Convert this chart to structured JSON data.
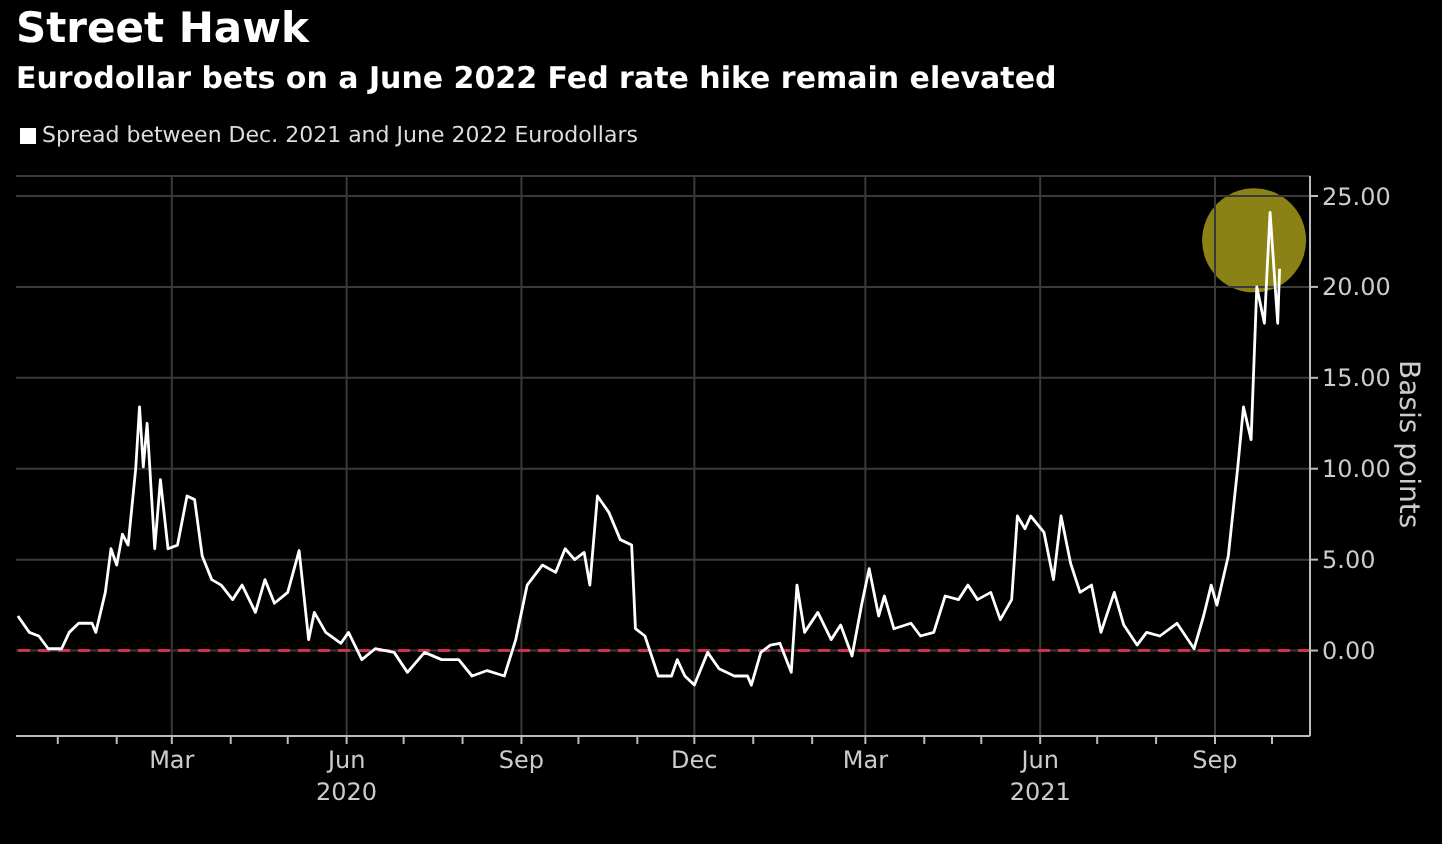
{
  "chart_data": {
    "type": "line",
    "title": "Street Hawk",
    "subtitle": "Eurodollar bets on a June 2022 Fed rate hike remain elevated",
    "ylabel": "Basis points",
    "x": [
      "2019-12-11",
      "2019-12-17",
      "2019-12-22",
      "2019-12-27",
      "2020-01-03",
      "2020-01-07",
      "2020-01-12",
      "2020-01-19",
      "2020-01-21",
      "2020-01-26",
      "2020-01-29",
      "2020-02-01",
      "2020-02-04",
      "2020-02-07",
      "2020-02-11",
      "2020-02-13",
      "2020-02-15",
      "2020-02-17",
      "2020-02-21",
      "2020-02-24",
      "2020-02-28",
      "2020-03-04",
      "2020-03-09",
      "2020-03-13",
      "2020-03-17",
      "2020-03-22",
      "2020-03-27",
      "2020-04-02",
      "2020-04-07",
      "2020-04-14",
      "2020-04-19",
      "2020-04-24",
      "2020-05-01",
      "2020-05-07",
      "2020-05-12",
      "2020-05-15",
      "2020-05-21",
      "2020-05-29",
      "2020-06-02",
      "2020-06-09",
      "2020-06-16",
      "2020-06-26",
      "2020-07-03",
      "2020-07-12",
      "2020-07-21",
      "2020-07-30",
      "2020-08-06",
      "2020-08-14",
      "2020-08-23",
      "2020-08-29",
      "2020-09-04",
      "2020-09-12",
      "2020-09-19",
      "2020-09-24",
      "2020-09-29",
      "2020-10-04",
      "2020-10-07",
      "2020-10-11",
      "2020-10-17",
      "2020-10-23",
      "2020-10-29",
      "2020-10-31",
      "2020-11-05",
      "2020-11-12",
      "2020-11-19",
      "2020-11-22",
      "2020-11-26",
      "2020-12-01",
      "2020-12-08",
      "2020-12-14",
      "2020-12-22",
      "2020-12-29",
      "2020-12-31",
      "2021-01-05",
      "2021-01-10",
      "2021-01-15",
      "2021-01-21",
      "2021-01-24",
      "2021-01-28",
      "2021-02-04",
      "2021-02-11",
      "2021-02-16",
      "2021-02-22",
      "2021-02-27",
      "2021-03-03",
      "2021-03-08",
      "2021-03-11",
      "2021-03-16",
      "2021-03-25",
      "2021-03-30",
      "2021-04-06",
      "2021-04-12",
      "2021-04-19",
      "2021-04-24",
      "2021-04-29",
      "2021-05-06",
      "2021-05-11",
      "2021-05-17",
      "2021-05-20",
      "2021-05-24",
      "2021-05-27",
      "2021-06-03",
      "2021-06-08",
      "2021-06-12",
      "2021-06-17",
      "2021-06-22",
      "2021-06-28",
      "2021-07-03",
      "2021-07-10",
      "2021-07-15",
      "2021-07-22",
      "2021-07-27",
      "2021-08-03",
      "2021-08-12",
      "2021-08-21",
      "2021-08-26",
      "2021-08-30",
      "2021-09-02",
      "2021-09-08",
      "2021-09-13",
      "2021-09-16",
      "2021-09-20",
      "2021-09-23",
      "2021-09-27",
      "2021-09-30",
      "2021-10-04",
      "2021-10-05"
    ],
    "series": [
      {
        "name": "Spread between Dec. 2021 and June 2022 Eurodollars",
        "color": "#ffffff",
        "values": [
          1.9,
          1.0,
          0.8,
          0.1,
          0.1,
          1.0,
          1.5,
          1.5,
          1.0,
          3.2,
          5.6,
          4.7,
          6.4,
          5.8,
          10.0,
          13.4,
          10.1,
          12.5,
          5.6,
          9.4,
          5.6,
          5.8,
          8.5,
          8.3,
          5.2,
          3.9,
          3.6,
          2.8,
          3.6,
          2.1,
          3.9,
          2.6,
          3.2,
          5.5,
          0.6,
          2.1,
          1.0,
          0.4,
          1.0,
          -0.5,
          0.1,
          -0.1,
          -1.2,
          -0.1,
          -0.5,
          -0.5,
          -1.4,
          -1.1,
          -1.4,
          0.6,
          3.6,
          4.7,
          4.3,
          5.6,
          5.0,
          5.4,
          3.6,
          8.5,
          7.6,
          6.1,
          5.8,
          1.2,
          0.8,
          -1.4,
          -1.4,
          -0.5,
          -1.4,
          -1.9,
          -0.1,
          -1.0,
          -1.4,
          -1.4,
          -1.9,
          -0.1,
          0.3,
          0.4,
          -1.2,
          3.6,
          1.0,
          2.1,
          0.6,
          1.4,
          -0.3,
          2.5,
          4.5,
          1.9,
          3.0,
          1.2,
          1.5,
          0.8,
          1.0,
          3.0,
          2.8,
          3.6,
          2.8,
          3.2,
          1.7,
          2.8,
          7.4,
          6.7,
          7.4,
          6.5,
          3.9,
          7.4,
          4.8,
          3.2,
          3.6,
          1.0,
          3.2,
          1.4,
          0.3,
          1.0,
          0.8,
          1.5,
          0.1,
          1.9,
          3.6,
          2.5,
          5.2,
          10.1,
          13.4,
          11.6,
          20.0,
          18.0,
          24.1,
          18.0,
          21.0
        ]
      }
    ],
    "xlim": [
      "2019-12-10",
      "2021-10-21"
    ],
    "xticks": [
      {
        "value": "2020-01-01",
        "label": null
      },
      {
        "value": "2020-02-01",
        "label": null
      },
      {
        "value": "2020-03-01",
        "label": "Mar"
      },
      {
        "value": "2020-04-01",
        "label": null
      },
      {
        "value": "2020-05-01",
        "label": null
      },
      {
        "value": "2020-06-01",
        "label": "Jun\n2020"
      },
      {
        "value": "2020-07-01",
        "label": null
      },
      {
        "value": "2020-08-01",
        "label": null
      },
      {
        "value": "2020-09-01",
        "label": "Sep"
      },
      {
        "value": "2020-10-01",
        "label": null
      },
      {
        "value": "2020-11-01",
        "label": null
      },
      {
        "value": "2020-12-01",
        "label": "Dec"
      },
      {
        "value": "2021-01-01",
        "label": null
      },
      {
        "value": "2021-02-01",
        "label": null
      },
      {
        "value": "2021-03-01",
        "label": "Mar"
      },
      {
        "value": "2021-04-01",
        "label": null
      },
      {
        "value": "2021-05-01",
        "label": null
      },
      {
        "value": "2021-06-01",
        "label": "Jun\n2021"
      },
      {
        "value": "2021-07-01",
        "label": null
      },
      {
        "value": "2021-08-01",
        "label": null
      },
      {
        "value": "2021-09-01",
        "label": "Sep"
      },
      {
        "value": "2021-10-01",
        "label": null
      }
    ],
    "ylim": [
      -4.7,
      26.1
    ],
    "yticks": [
      {
        "value": 0,
        "label": "0.00"
      },
      {
        "value": 5,
        "label": "5.00"
      },
      {
        "value": 10,
        "label": "10.00"
      },
      {
        "value": 15,
        "label": "15.00"
      },
      {
        "value": 20,
        "label": "20.00"
      },
      {
        "value": 25,
        "label": "25.00"
      }
    ],
    "ref_lines": [
      {
        "axis": "y",
        "value": 0,
        "color": "#c8344c",
        "line_style": "dashed"
      }
    ],
    "grid": true,
    "legend": "top left",
    "marker": "none",
    "line_style": "solid"
  }
}
